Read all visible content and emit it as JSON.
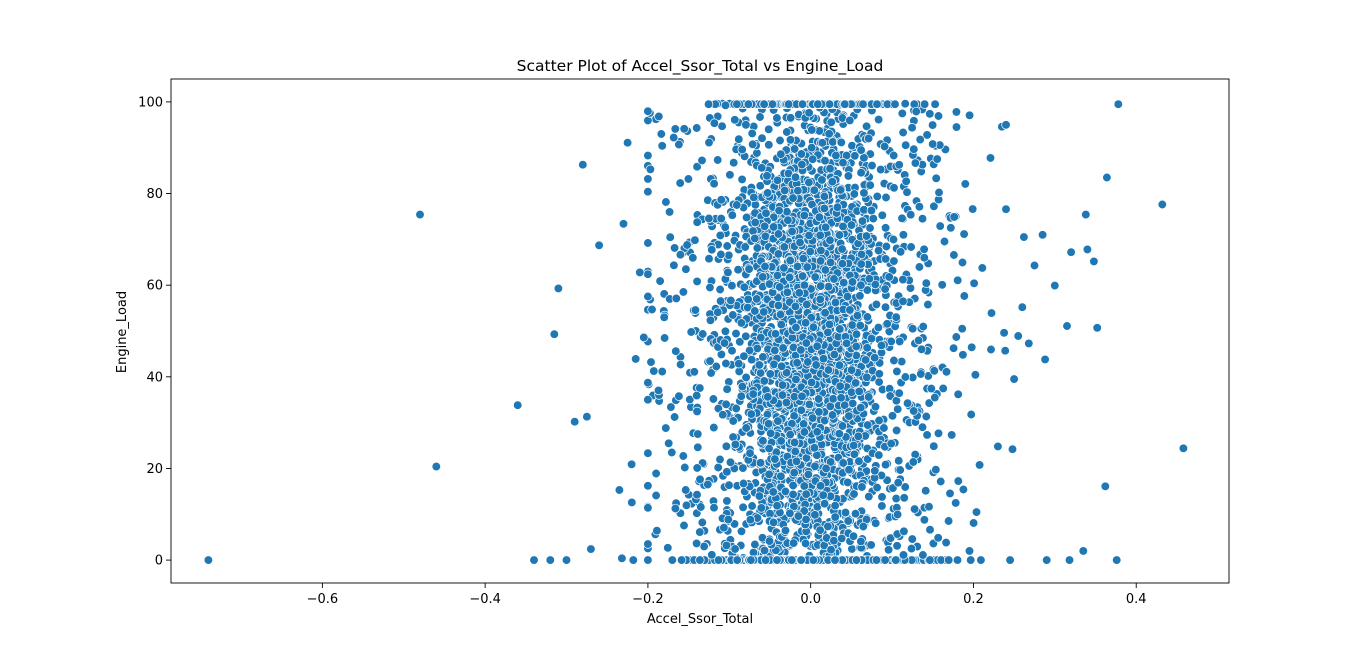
{
  "chart_data": {
    "type": "scatter",
    "title": "Scatter Plot of Accel_Ssor_Total vs Engine_Load",
    "xlabel": "Accel_Ssor_Total",
    "ylabel": "Engine_Load",
    "xlim": [
      -0.786,
      0.514
    ],
    "ylim": [
      -5,
      105
    ],
    "x_ticks": [
      -0.6,
      -0.4,
      -0.2,
      0.0,
      0.2,
      0.4
    ],
    "x_tick_labels": [
      "−0.6",
      "−0.4",
      "−0.2",
      "0.0",
      "0.2",
      "0.4"
    ],
    "y_ticks": [
      0,
      20,
      40,
      60,
      80,
      100
    ],
    "y_tick_labels": [
      "0",
      "20",
      "40",
      "60",
      "80",
      "100"
    ],
    "grid": false,
    "marker_color": "#1f77b4",
    "marker_edge_color": "#ffffff",
    "outliers": [
      {
        "x": -0.74,
        "y": 0.0
      },
      {
        "x": -0.48,
        "y": 75.4
      },
      {
        "x": -0.46,
        "y": 20.4
      },
      {
        "x": -0.36,
        "y": 33.8
      },
      {
        "x": -0.34,
        "y": 0.0
      },
      {
        "x": -0.32,
        "y": 0.0
      },
      {
        "x": -0.315,
        "y": 49.3
      },
      {
        "x": -0.31,
        "y": 59.3
      },
      {
        "x": -0.3,
        "y": 0.0
      },
      {
        "x": -0.29,
        "y": 30.2
      },
      {
        "x": -0.28,
        "y": 86.3
      },
      {
        "x": -0.275,
        "y": 31.3
      },
      {
        "x": -0.27,
        "y": 2.4
      },
      {
        "x": -0.26,
        "y": 68.7
      },
      {
        "x": -0.235,
        "y": 15.3
      },
      {
        "x": -0.232,
        "y": 0.4
      },
      {
        "x": -0.23,
        "y": 73.4
      },
      {
        "x": -0.225,
        "y": 91.1
      },
      {
        "x": -0.22,
        "y": 20.9
      },
      {
        "x": -0.218,
        "y": 0.0
      },
      {
        "x": -0.215,
        "y": 43.9
      },
      {
        "x": -0.21,
        "y": 62.8
      },
      {
        "x": -0.205,
        "y": 48.6
      },
      {
        "x": -0.2,
        "y": 0.0
      },
      {
        "x": -0.2,
        "y": 80.4
      },
      {
        "x": -0.2,
        "y": 69.2
      },
      {
        "x": -0.2,
        "y": 35.0
      },
      {
        "x": -0.2,
        "y": 3.5
      },
      {
        "x": -0.197,
        "y": 85.3
      },
      {
        "x": -0.195,
        "y": 54.7
      },
      {
        "x": -0.19,
        "y": 18.9
      },
      {
        "x": -0.19,
        "y": 14.1
      },
      {
        "x": -0.185,
        "y": 60.9
      },
      {
        "x": -0.18,
        "y": 53.0
      },
      {
        "x": -0.178,
        "y": 28.8
      },
      {
        "x": 0.235,
        "y": 94.6
      },
      {
        "x": 0.24,
        "y": 95.0
      },
      {
        "x": 0.245,
        "y": 0.0
      },
      {
        "x": 0.248,
        "y": 24.2
      },
      {
        "x": 0.25,
        "y": 39.5
      },
      {
        "x": 0.255,
        "y": 48.9
      },
      {
        "x": 0.26,
        "y": 55.2
      },
      {
        "x": 0.262,
        "y": 70.5
      },
      {
        "x": 0.268,
        "y": 47.3
      },
      {
        "x": 0.275,
        "y": 64.3
      },
      {
        "x": 0.285,
        "y": 71.0
      },
      {
        "x": 0.288,
        "y": 43.8
      },
      {
        "x": 0.29,
        "y": 0.0
      },
      {
        "x": 0.3,
        "y": 59.9
      },
      {
        "x": 0.315,
        "y": 51.1
      },
      {
        "x": 0.318,
        "y": 0.0
      },
      {
        "x": 0.32,
        "y": 67.2
      },
      {
        "x": 0.335,
        "y": 2.0
      },
      {
        "x": 0.338,
        "y": 75.4
      },
      {
        "x": 0.34,
        "y": 67.8
      },
      {
        "x": 0.348,
        "y": 65.2
      },
      {
        "x": 0.352,
        "y": 50.7
      },
      {
        "x": 0.362,
        "y": 16.1
      },
      {
        "x": 0.364,
        "y": 83.5
      },
      {
        "x": 0.376,
        "y": 0.0
      },
      {
        "x": 0.378,
        "y": 99.5
      },
      {
        "x": 0.432,
        "y": 77.6
      },
      {
        "x": 0.458,
        "y": 24.4
      }
    ]
  }
}
